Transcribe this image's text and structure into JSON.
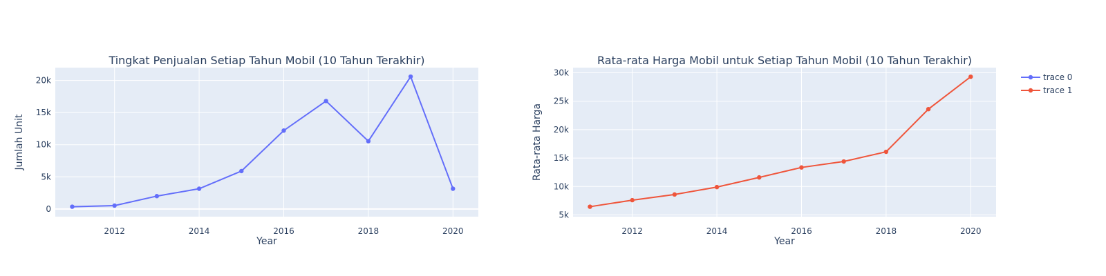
{
  "chart_data": [
    {
      "type": "line",
      "title": "Tingkat Penjualan Setiap Tahun Mobil (10 Tahun Terakhir)",
      "xlabel": "Year",
      "ylabel": "Jumlah Unit",
      "x": [
        2011,
        2012,
        2013,
        2014,
        2015,
        2016,
        2017,
        2018,
        2019,
        2020
      ],
      "xticks": [
        2012,
        2014,
        2016,
        2018,
        2020
      ],
      "yticks": [
        0,
        5000,
        10000,
        15000,
        20000
      ],
      "ytick_labels": [
        "0",
        "5k",
        "10k",
        "15k",
        "20k"
      ],
      "xlim": [
        2010.6,
        2020.6
      ],
      "ylim": [
        -1200,
        22000
      ],
      "grid": true,
      "series": [
        {
          "name": "trace 0",
          "color": "#636efa",
          "values": [
            350,
            520,
            2000,
            3150,
            5900,
            12200,
            16800,
            10550,
            20600,
            3150
          ]
        }
      ]
    },
    {
      "type": "line",
      "title": "Rata-rata Harga Mobil untuk Setiap Tahun Mobil (10 Tahun Terakhir)",
      "xlabel": "Year",
      "ylabel": "Rata-rata Harga",
      "x": [
        2011,
        2012,
        2013,
        2014,
        2015,
        2016,
        2017,
        2018,
        2019,
        2020
      ],
      "xticks": [
        2012,
        2014,
        2016,
        2018,
        2020
      ],
      "yticks": [
        5000,
        10000,
        15000,
        20000,
        25000,
        30000
      ],
      "ytick_labels": [
        "5k",
        "10k",
        "15k",
        "20k",
        "25k",
        "30k"
      ],
      "xlim": [
        2010.6,
        2020.6
      ],
      "ylim": [
        4700,
        30900
      ],
      "grid": true,
      "series": [
        {
          "name": "trace 1",
          "color": "#ef553b",
          "values": [
            6450,
            7600,
            8600,
            9900,
            11600,
            13350,
            14400,
            16100,
            23600,
            29300
          ]
        }
      ]
    }
  ],
  "legend": {
    "placement": "top-right",
    "items": [
      {
        "name": "trace 0",
        "color": "#636efa"
      },
      {
        "name": "trace 1",
        "color": "#ef553b"
      }
    ]
  }
}
